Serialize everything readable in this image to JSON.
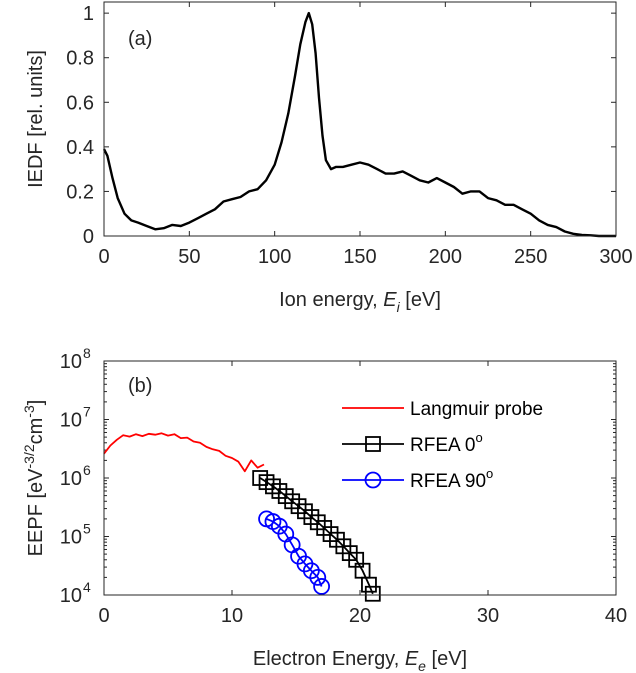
{
  "chart_data": [
    {
      "type": "line",
      "panel_label": "(a)",
      "xlabel": "Ion energy,",
      "xlabel_symbol": "E",
      "xlabel_sub": "i",
      "xlabel_unit": "[eV]",
      "ylabel": "IEDF [rel. units]",
      "xlim": [
        0,
        300
      ],
      "ylim": [
        0,
        1.05
      ],
      "xticks": [
        0,
        50,
        100,
        150,
        200,
        250,
        300
      ],
      "yticks": [
        0,
        0.2,
        0.4,
        0.6,
        0.8,
        1
      ],
      "xtick_labels": [
        "0",
        "50",
        "100",
        "150",
        "200",
        "250",
        "300"
      ],
      "ytick_labels": [
        "0",
        "0.2",
        "0.4",
        "0.6",
        "0.8",
        "1"
      ],
      "series": [
        {
          "color": "#000000",
          "x": [
            0,
            2,
            5,
            8,
            12,
            16,
            20,
            25,
            30,
            35,
            40,
            45,
            50,
            55,
            60,
            65,
            70,
            75,
            80,
            85,
            90,
            95,
            100,
            104,
            108,
            112,
            115,
            118,
            120,
            122,
            124,
            126,
            128,
            130,
            133,
            136,
            140,
            145,
            150,
            155,
            160,
            165,
            170,
            175,
            180,
            185,
            190,
            195,
            200,
            205,
            210,
            215,
            220,
            225,
            230,
            235,
            240,
            245,
            250,
            255,
            260,
            265,
            270,
            275,
            280,
            285,
            290,
            295,
            300
          ],
          "y": [
            0.39,
            0.36,
            0.26,
            0.17,
            0.1,
            0.07,
            0.06,
            0.045,
            0.03,
            0.035,
            0.05,
            0.045,
            0.06,
            0.08,
            0.1,
            0.12,
            0.155,
            0.165,
            0.175,
            0.2,
            0.21,
            0.25,
            0.32,
            0.42,
            0.55,
            0.72,
            0.86,
            0.96,
            1.0,
            0.95,
            0.82,
            0.62,
            0.45,
            0.34,
            0.3,
            0.31,
            0.31,
            0.32,
            0.33,
            0.32,
            0.3,
            0.28,
            0.28,
            0.29,
            0.27,
            0.25,
            0.24,
            0.26,
            0.24,
            0.22,
            0.19,
            0.2,
            0.2,
            0.17,
            0.16,
            0.14,
            0.14,
            0.12,
            0.1,
            0.07,
            0.05,
            0.04,
            0.02,
            0.01,
            0.005,
            0.003,
            0.0,
            0.0,
            0.0
          ]
        }
      ]
    },
    {
      "type": "line",
      "panel_label": "(b)",
      "xlabel": "Electron Energy,",
      "xlabel_symbol": "E",
      "xlabel_sub": "e",
      "xlabel_unit": "[eV]",
      "ylabel": "EEPF [eV",
      "ylabel_sup1": "-3/2",
      "ylabel_mid": "cm",
      "ylabel_sup2": "-3",
      "ylabel_end": "]",
      "yscale": "log",
      "xlim": [
        0,
        40
      ],
      "ylim": [
        10000,
        100000000
      ],
      "xticks": [
        0,
        10,
        20,
        30,
        40
      ],
      "xtick_labels": [
        "0",
        "10",
        "20",
        "30",
        "40"
      ],
      "ytick_exponents": [
        4,
        5,
        6,
        7,
        8
      ],
      "ytick_base": "10",
      "ytick_exp_labels": [
        "4",
        "5",
        "6",
        "7",
        "8"
      ],
      "legend_position": "right",
      "series": [
        {
          "name": "Langmuir probe",
          "color": "#ff0000",
          "marker": "none",
          "x": [
            0,
            0.5,
            1,
            1.5,
            2,
            2.5,
            3,
            3.5,
            4,
            4.5,
            5,
            5.5,
            6,
            6.5,
            7,
            7.5,
            8,
            8.5,
            9,
            9.5,
            10,
            10.5,
            11,
            11.5,
            12,
            12.5
          ],
          "y": [
            2600000,
            3600000,
            4500000,
            5400000,
            5100000,
            5600000,
            5200000,
            5700000,
            5500000,
            5800000,
            5300000,
            5600000,
            4800000,
            4900000,
            4200000,
            4000000,
            3400000,
            3100000,
            2900000,
            2400000,
            2200000,
            1900000,
            1300000,
            2000000,
            1500000,
            1700000
          ]
        },
        {
          "name": "RFEA 0",
          "name_sup": "o",
          "color": "#000000",
          "marker": "square",
          "x": [
            12.2,
            12.7,
            13.2,
            13.7,
            14.2,
            14.7,
            15.2,
            15.7,
            16.2,
            16.7,
            17.2,
            17.7,
            18.2,
            18.7,
            19.2,
            19.7,
            20.2,
            20.7,
            21.0
          ],
          "y": [
            1000000,
            850000,
            720000,
            600000,
            490000,
            400000,
            330000,
            270000,
            215000,
            175000,
            140000,
            110000,
            88000,
            68000,
            52000,
            40000,
            26000,
            15000,
            10500
          ]
        },
        {
          "name": "RFEA 90",
          "name_sup": "o",
          "color": "#0000ff",
          "marker": "circle",
          "x": [
            12.7,
            13.2,
            13.7,
            14.2,
            14.7,
            15.2,
            15.7,
            16.2,
            16.7,
            17.0
          ],
          "y": [
            200000,
            180000,
            150000,
            110000,
            72000,
            46000,
            34000,
            26000,
            20000,
            14000
          ]
        }
      ]
    }
  ]
}
